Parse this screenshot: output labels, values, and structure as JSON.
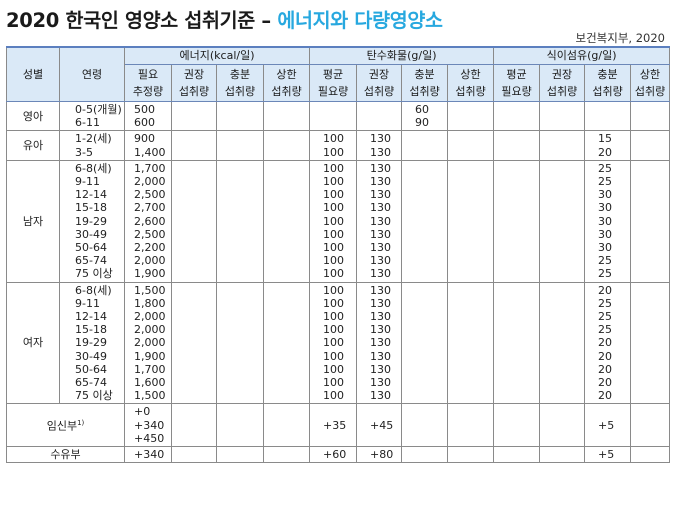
{
  "title": {
    "main": "2020 한국인 영양소 섭취기준 – ",
    "highlight": "에너지와 다량영양소"
  },
  "source": "보건복지부, 2020",
  "headers": {
    "sex": "성별",
    "age": "연령",
    "groups": [
      "에너지(kcal/일)",
      "탄수화물(g/일)",
      "식이섬유(g/일)"
    ],
    "energy_cols": [
      "필요\n추정량",
      "권장\n섭취량",
      "충분\n섭취량",
      "상한\n섭취량"
    ],
    "carb_cols": [
      "평균\n필요량",
      "권장\n섭취량",
      "충분\n섭취량",
      "상한\n섭취량"
    ],
    "fiber_cols": [
      "평균\n필요량",
      "권장\n섭취량",
      "충분\n섭취량",
      "상한\n섭취량"
    ]
  },
  "rows": {
    "infant": {
      "group": "영아",
      "ages": "0-5(개월)\n6-11",
      "energy_eer": "500\n600",
      "carb_ai": "60\n90"
    },
    "toddler": {
      "group": "유아",
      "ages": "1-2(세)\n3-5",
      "energy_eer": "900\n1,400",
      "carb_ear": "100\n100",
      "carb_rni": "130\n130",
      "fiber_ai": "15\n20"
    },
    "male": {
      "group": "남자",
      "ages": "6-8(세)\n9-11\n12-14\n15-18\n19-29\n30-49\n50-64\n65-74\n75 이상",
      "energy_eer": "1,700\n2,000\n2,500\n2,700\n2,600\n2,500\n2,200\n2,000\n1,900",
      "carb_ear": "100\n100\n100\n100\n100\n100\n100\n100\n100",
      "carb_rni": "130\n130\n130\n130\n130\n130\n130\n130\n130",
      "fiber_ai": "25\n25\n30\n30\n30\n30\n30\n25\n25"
    },
    "female": {
      "group": "여자",
      "ages": "6-8(세)\n9-11\n12-14\n15-18\n19-29\n30-49\n50-64\n65-74\n75 이상",
      "energy_eer": "1,500\n1,800\n2,000\n2,000\n2,000\n1,900\n1,700\n1,600\n1,500",
      "carb_ear": "100\n100\n100\n100\n100\n100\n100\n100\n100",
      "carb_rni": "130\n130\n130\n130\n130\n130\n130\n130\n130",
      "fiber_ai": "20\n25\n25\n25\n20\n20\n20\n20\n20"
    },
    "pregnant": {
      "group": "임신부",
      "footnote": "1)",
      "energy_eer": "+0\n+340\n+450",
      "carb_ear": "+35",
      "carb_rni": "+45",
      "fiber_ai": "+5"
    },
    "lactating": {
      "group": "수유부",
      "energy_eer": "+340",
      "carb_ear": "+60",
      "carb_rni": "+80",
      "fiber_ai": "+5"
    }
  }
}
